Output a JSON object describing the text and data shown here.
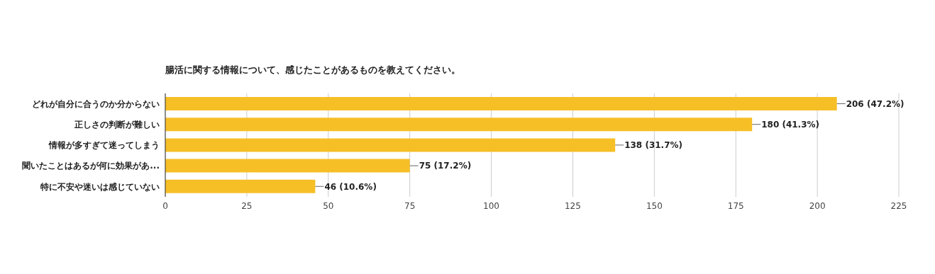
{
  "chart_data": {
    "type": "bar",
    "orientation": "horizontal",
    "title": "腸活に関する情報について、感じたことがあるものを教えてください。",
    "categories": [
      "どれが自分に合うのか分からない",
      "正しさの判断が難しい",
      "情報が多すぎて迷ってしまう",
      "聞いたことはあるが何に効果があ...",
      "特に不安や迷いは感じていない"
    ],
    "values": [
      206,
      180,
      138,
      75,
      46
    ],
    "value_labels": [
      "206 (47.2%)",
      "180 (41.3%)",
      "138 (31.7%)",
      "75 (17.2%)",
      "46 (10.6%)"
    ],
    "color": "#f6bf26",
    "xlim": [
      0,
      225
    ],
    "xticks": [
      0,
      25,
      50,
      75,
      100,
      125,
      150,
      175,
      200,
      225
    ],
    "grid": "x"
  }
}
